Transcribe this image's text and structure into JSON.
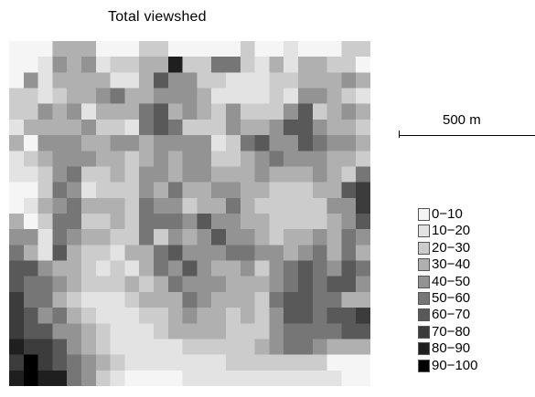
{
  "title": "Total viewshed",
  "scale_bar": {
    "label": "500 m"
  },
  "legend": {
    "items": [
      {
        "label": "0−10",
        "color": "#f5f5f5"
      },
      {
        "label": "10−20",
        "color": "#e3e3e3"
      },
      {
        "label": "20−30",
        "color": "#cccccc"
      },
      {
        "label": "30−40",
        "color": "#b0b0b0"
      },
      {
        "label": "40−50",
        "color": "#939393"
      },
      {
        "label": "50−60",
        "color": "#767676"
      },
      {
        "label": "60−70",
        "color": "#595959"
      },
      {
        "label": "70−80",
        "color": "#3c3c3c"
      },
      {
        "label": "80−90",
        "color": "#1f1f1f"
      },
      {
        "label": "90−100",
        "color": "#000000"
      }
    ]
  },
  "grid": {
    "rows": [
      "0003330002200000200100022",
      "0014341223382255213133220",
      "0413333113644221112233343",
      "2212334533444311112144321",
      "2243413335634324222462343",
      "1333342215652224334664332",
      "3044433443444412564465443",
      "1234443323434422345444332",
      "1124522324434433343334325",
      "0025412224353344332223367",
      "0134533325442335322222447",
      "3025522325554644332222346",
      "4415433225243464432334354",
      "5316322133564445544345353",
      "6643321213546433424565465",
      "6554322232354443334565664",
      "7553211123335433325665533",
      "7645321112234332324665667",
      "7664432111233332224555566",
      "8776432111112222234554333",
      "7976543211111112222222000",
      "8988542100001111111111100"
    ]
  }
}
